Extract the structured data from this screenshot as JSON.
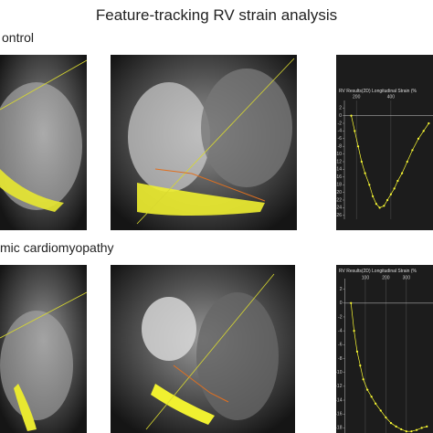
{
  "title": "Feature-tracking RV strain analysis",
  "row_labels": [
    "ontrol",
    "mic cardiomyopathy"
  ],
  "chart_data": [
    {
      "type": "line",
      "title": "RV Results(2D) Longitudinal Strain (%",
      "color": "#ffff33",
      "x": [
        170,
        190,
        210,
        230,
        250,
        275,
        295,
        315,
        335,
        360,
        380,
        400,
        420,
        440,
        465,
        495,
        525,
        560,
        590,
        620
      ],
      "values": [
        0,
        -4,
        -8,
        -12,
        -15,
        -18,
        -21,
        -23,
        -24,
        -23.5,
        -22,
        -20.5,
        -19,
        -17,
        -15,
        -12,
        -9,
        -6,
        -4,
        -2
      ],
      "xlim": [
        130,
        650
      ],
      "ylim": [
        -27,
        3
      ],
      "xticks": [
        200,
        400
      ],
      "yticks": [
        2,
        0,
        -2,
        -4,
        -6,
        -8,
        -10,
        -12,
        -14,
        -16,
        -18,
        -20,
        -22,
        -24,
        -26
      ]
    },
    {
      "type": "line",
      "title": "RV Results(2D) Longitudinal Strain (%",
      "color": "#ffff33",
      "x": [
        30,
        45,
        60,
        75,
        90,
        110,
        130,
        150,
        175,
        200,
        225,
        250,
        275,
        300,
        325,
        350,
        375,
        400
      ],
      "values": [
        0,
        -4,
        -7,
        -9,
        -11,
        -12.5,
        -13.5,
        -14.5,
        -15.5,
        -16.5,
        -17.3,
        -17.8,
        -18.2,
        -18.5,
        -18.5,
        -18.3,
        -18,
        -17.8
      ],
      "xlim": [
        0,
        430
      ],
      "ylim": [
        -19,
        3
      ],
      "xticks": [
        100,
        200,
        300
      ],
      "yticks": [
        2,
        0,
        -2,
        -4,
        -6,
        -8,
        -10,
        -12,
        -14,
        -16,
        -18
      ]
    }
  ]
}
